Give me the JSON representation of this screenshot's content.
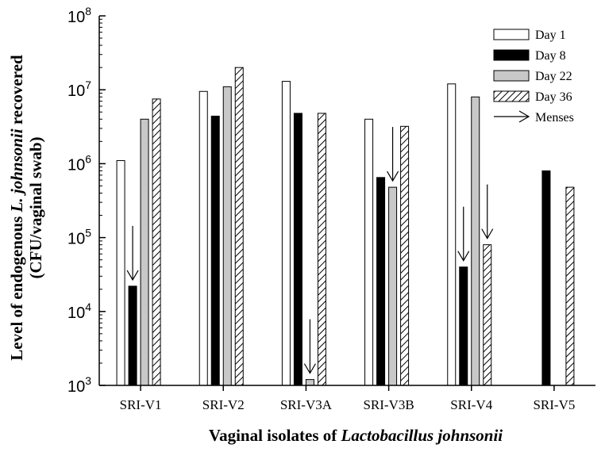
{
  "chart_data": {
    "type": "bar",
    "y_scale": "log",
    "ylim": [
      1000,
      100000000
    ],
    "y_ticks": [
      {
        "base": "10",
        "exp": "3"
      },
      {
        "base": "10",
        "exp": "4"
      },
      {
        "base": "10",
        "exp": "5"
      },
      {
        "base": "10",
        "exp": "6"
      },
      {
        "base": "10",
        "exp": "7"
      },
      {
        "base": "10",
        "exp": "8"
      }
    ],
    "y_bottom_tick_label": {
      "base": "10",
      "exp": "3"
    },
    "categories": [
      "SRI-V1",
      "SRI-V2",
      "SRI-V3A",
      "SRI-V3B",
      "SRI-V4",
      "SRI-V5"
    ],
    "series": [
      {
        "name": "Day 1",
        "style": "white",
        "values": [
          1100000,
          9500000,
          13000000,
          4000000,
          12000000,
          null
        ]
      },
      {
        "name": "Day 8",
        "style": "black",
        "values": [
          22000,
          4400000,
          4800000,
          650000,
          40000,
          800000
        ]
      },
      {
        "name": "Day 22",
        "style": "gray",
        "values": [
          4000000,
          11000000,
          1200,
          480000,
          8000000,
          null
        ]
      },
      {
        "name": "Day 36",
        "style": "hatched",
        "values": [
          7500000,
          20000000,
          4800000,
          3200000,
          80000,
          480000
        ]
      }
    ],
    "menses_markers": [
      {
        "category": "SRI-V1",
        "series": "Day 8"
      },
      {
        "category": "SRI-V3A",
        "series": "Day 22"
      },
      {
        "category": "SRI-V3B",
        "series": "Day 22"
      },
      {
        "category": "SRI-V4",
        "series": "Day 8"
      },
      {
        "category": "SRI-V4",
        "series": "Day 36"
      }
    ],
    "legend_extra": "Menses",
    "legend_position": "top-right",
    "ylabel_parts": [
      "Level of endogenous ",
      "L. johnsonii",
      " recovered"
    ],
    "ylabel_line2": "(CFU/vaginal swab)",
    "xlabel_parts": [
      "Vaginal isolates of ",
      "Lactobacillus johnsonii"
    ],
    "colors": {
      "day1": "#ffffff",
      "day8": "#000000",
      "day22": "#c8c8c8",
      "hatch": "#000000"
    }
  }
}
